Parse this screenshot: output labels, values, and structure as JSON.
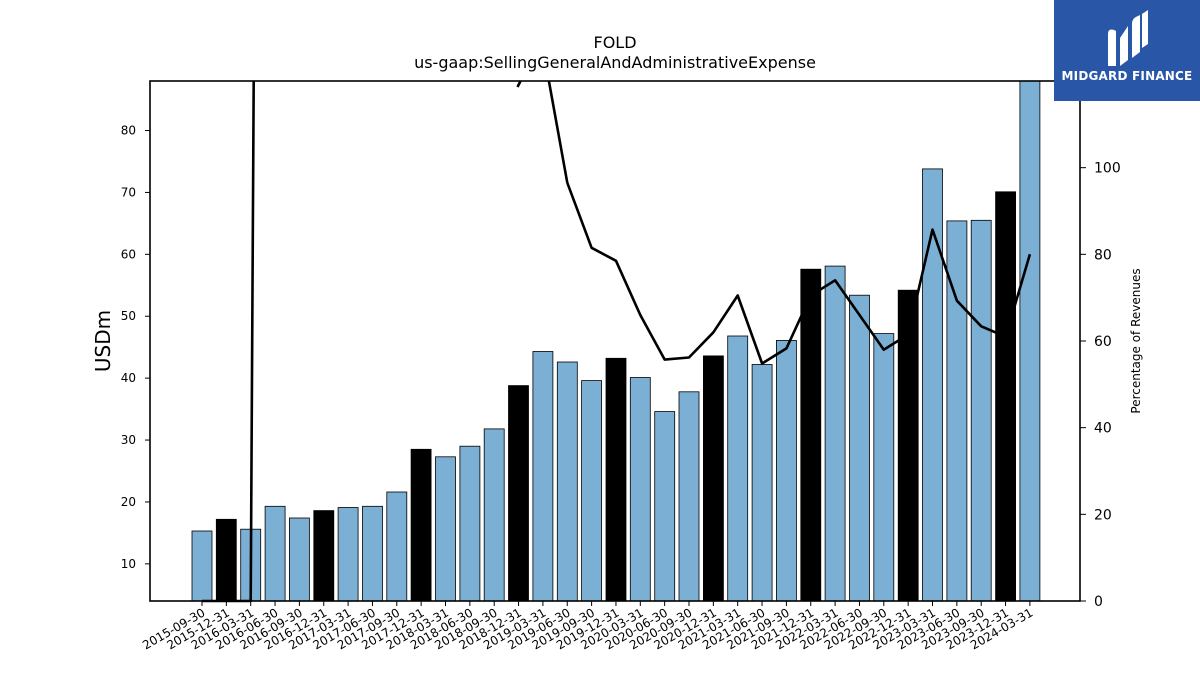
{
  "title": "FOLD",
  "subtitle": "us-gaap:SellingGeneralAndAdministrativeExpense",
  "logo": {
    "text": "MIDGARD FINANCE",
    "background": "#2a56a8"
  },
  "colors": {
    "bar_default": "#7bafd4",
    "bar_highlight": "#000000",
    "line": "#000000"
  },
  "chart_data": {
    "type": "bar",
    "categories": [
      "2015-09-30",
      "2015-12-31",
      "2016-03-31",
      "2016-06-30",
      "2016-09-30",
      "2016-12-31",
      "2017-03-31",
      "2017-06-30",
      "2017-09-30",
      "2017-12-31",
      "2018-03-31",
      "2018-06-30",
      "2018-09-30",
      "2018-12-31",
      "2019-03-31",
      "2019-06-30",
      "2019-09-30",
      "2019-12-31",
      "2020-03-31",
      "2020-06-30",
      "2020-09-30",
      "2020-12-31",
      "2021-03-31",
      "2021-06-30",
      "2021-09-30",
      "2021-12-31",
      "2022-03-31",
      "2022-06-30",
      "2022-09-30",
      "2022-12-31",
      "2023-03-31",
      "2023-06-30",
      "2023-09-30",
      "2023-12-31",
      "2024-03-31"
    ],
    "series": [
      {
        "axis": "left",
        "values": [
          15.3,
          17.2,
          15.6,
          19.3,
          17.4,
          18.6,
          19.1,
          19.3,
          21.6,
          28.5,
          27.3,
          29.0,
          31.8,
          38.8,
          44.3,
          42.6,
          39.6,
          43.2,
          40.1,
          34.6,
          37.8,
          43.6,
          46.8,
          42.2,
          46.1,
          57.6,
          58.1,
          53.4,
          47.2,
          54.2,
          73.8,
          65.4,
          65.5,
          70.1,
          88.0
        ],
        "highlight": [
          false,
          true,
          false,
          false,
          false,
          true,
          false,
          false,
          false,
          true,
          false,
          false,
          false,
          true,
          false,
          false,
          false,
          true,
          false,
          false,
          false,
          true,
          false,
          false,
          false,
          true,
          false,
          false,
          false,
          true,
          false,
          false,
          false,
          true,
          false
        ]
      },
      {
        "type": "line",
        "axis": "right",
        "values": [
          0,
          0,
          0,
          null,
          null,
          null,
          null,
          null,
          null,
          null,
          null,
          null,
          null,
          null,
          null,
          96.5,
          81.5,
          78.5,
          66.0,
          55.7,
          56.2,
          62.0,
          70.5,
          54.8,
          58.3,
          70.5,
          74.0,
          66.0,
          58.0,
          61.5,
          85.7,
          69.3,
          63.4,
          61.0,
          80.0
        ],
        "off_top_spans": [
          [
            2,
            3
          ],
          [
            13,
            14
          ]
        ]
      }
    ],
    "xlabel": "",
    "ylabel": "USDm",
    "y2label": "Percentage of Revenues",
    "ylim": [
      4,
      88
    ],
    "y2lim": [
      0,
      120
    ],
    "yticks": [
      10,
      20,
      30,
      40,
      50,
      60,
      70,
      80
    ],
    "y2ticks": [
      0,
      20,
      40,
      60,
      80,
      100
    ],
    "grid": false,
    "legend": "none"
  }
}
